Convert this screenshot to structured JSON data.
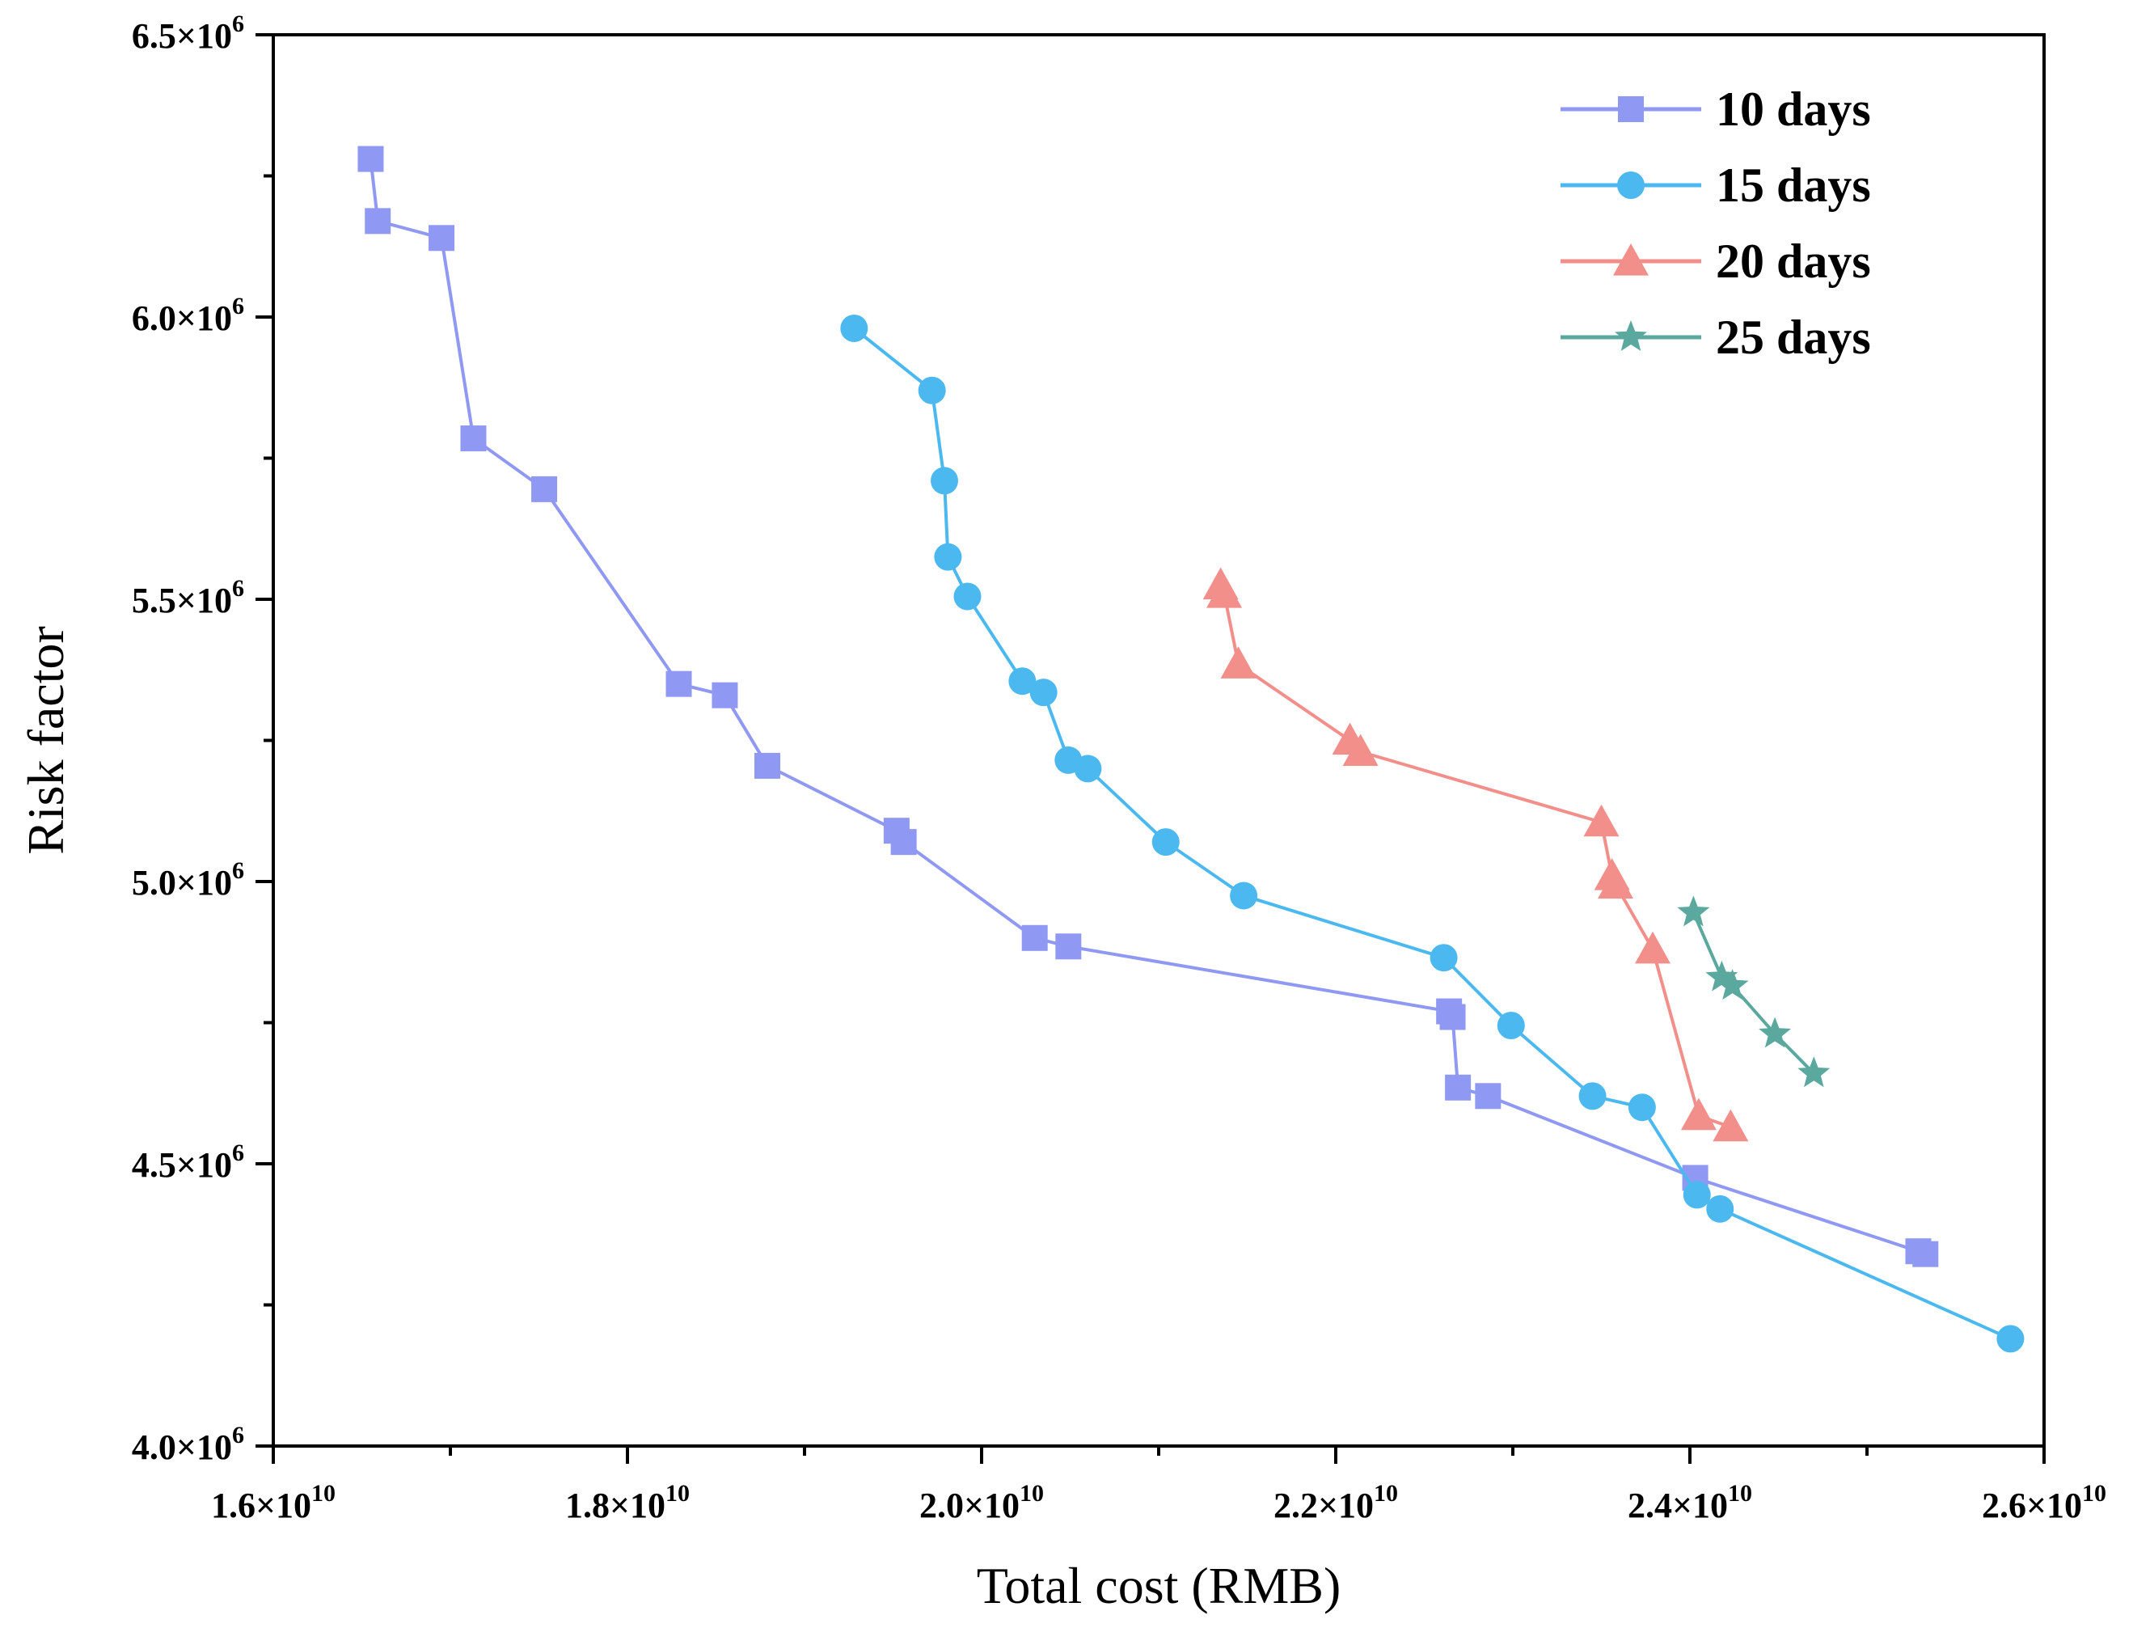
{
  "chart_data": {
    "type": "line",
    "xlabel": "Total cost (RMB)",
    "ylabel": "Risk factor",
    "xlim": [
      16000000000,
      26000000000
    ],
    "ylim": [
      4000000,
      6500000
    ],
    "x_ticks": [
      {
        "value": 16000000000,
        "mantissa": "1.6×10",
        "exp": "10"
      },
      {
        "value": 18000000000,
        "mantissa": "1.8×10",
        "exp": "10"
      },
      {
        "value": 20000000000,
        "mantissa": "2.0×10",
        "exp": "10"
      },
      {
        "value": 22000000000,
        "mantissa": "2.2×10",
        "exp": "10"
      },
      {
        "value": 24000000000,
        "mantissa": "2.4×10",
        "exp": "10"
      },
      {
        "value": 26000000000,
        "mantissa": "2.6×10",
        "exp": "10"
      }
    ],
    "y_ticks": [
      {
        "value": 4000000,
        "mantissa": "4.0×10",
        "exp": "6"
      },
      {
        "value": 4500000,
        "mantissa": "4.5×10",
        "exp": "6"
      },
      {
        "value": 5000000,
        "mantissa": "5.0×10",
        "exp": "6"
      },
      {
        "value": 5500000,
        "mantissa": "5.5×10",
        "exp": "6"
      },
      {
        "value": 6000000,
        "mantissa": "6.0×10",
        "exp": "6"
      },
      {
        "value": 6500000,
        "mantissa": "6.5×10",
        "exp": "6"
      }
    ],
    "grid": false,
    "legend_position": "top-right",
    "series": [
      {
        "name": "10 days",
        "color": "#8f98f2",
        "marker": "square",
        "points": [
          [
            16550000000,
            6280000
          ],
          [
            16590000000,
            6170000
          ],
          [
            16950000000,
            6140000
          ],
          [
            17130000000,
            5785000
          ],
          [
            17530000000,
            5695000
          ],
          [
            18290000000,
            5350000
          ],
          [
            18550000000,
            5330000
          ],
          [
            18790000000,
            5205000
          ],
          [
            19520000000,
            5090000
          ],
          [
            19560000000,
            5070000
          ],
          [
            20300000000,
            4900000
          ],
          [
            20490000000,
            4885000
          ],
          [
            22640000000,
            4770000
          ],
          [
            22660000000,
            4760000
          ],
          [
            22690000000,
            4635000
          ],
          [
            22860000000,
            4620000
          ],
          [
            24030000000,
            4475000
          ],
          [
            25290000000,
            4345000
          ],
          [
            25330000000,
            4340000
          ]
        ]
      },
      {
        "name": "15 days",
        "color": "#4cb8f0",
        "marker": "circle",
        "points": [
          [
            19280000000,
            5980000
          ],
          [
            19720000000,
            5870000
          ],
          [
            19790000000,
            5710000
          ],
          [
            19810000000,
            5575000
          ],
          [
            19920000000,
            5505000
          ],
          [
            20230000000,
            5355000
          ],
          [
            20350000000,
            5335000
          ],
          [
            20490000000,
            5215000
          ],
          [
            20600000000,
            5200000
          ],
          [
            21040000000,
            5070000
          ],
          [
            21480000000,
            4975000
          ],
          [
            22610000000,
            4865000
          ],
          [
            22990000000,
            4745000
          ],
          [
            23450000000,
            4620000
          ],
          [
            23730000000,
            4600000
          ],
          [
            24040000000,
            4445000
          ],
          [
            24170000000,
            4420000
          ],
          [
            25810000000,
            4190000
          ]
        ]
      },
      {
        "name": "20 days",
        "color": "#f28f8a",
        "marker": "triangle",
        "points": [
          [
            21350000000,
            5525000
          ],
          [
            21370000000,
            5510000
          ],
          [
            21450000000,
            5385000
          ],
          [
            22080000000,
            5250000
          ],
          [
            22140000000,
            5230000
          ],
          [
            23500000000,
            5105000
          ],
          [
            23560000000,
            5010000
          ],
          [
            23580000000,
            4995000
          ],
          [
            23790000000,
            4880000
          ],
          [
            24050000000,
            4585000
          ],
          [
            24230000000,
            4565000
          ]
        ]
      },
      {
        "name": "25 days",
        "color": "#5ba89e",
        "marker": "star",
        "points": [
          [
            24020000000,
            4945000
          ],
          [
            24180000000,
            4830000
          ],
          [
            24240000000,
            4815000
          ],
          [
            24480000000,
            4730000
          ],
          [
            24700000000,
            4660000
          ]
        ]
      }
    ]
  }
}
